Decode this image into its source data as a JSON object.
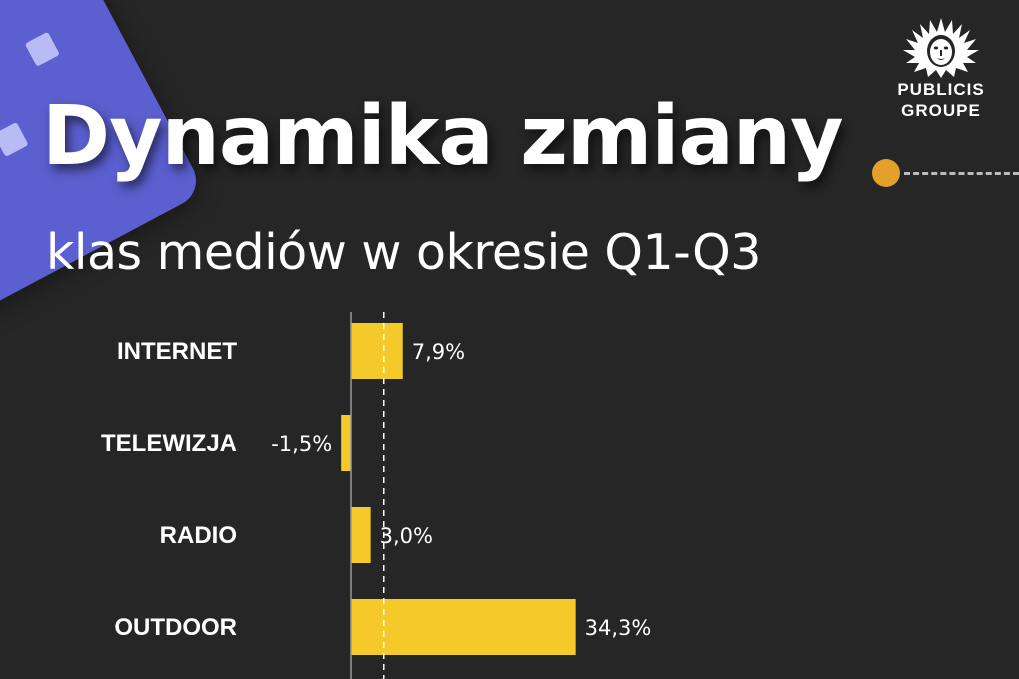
{
  "title": "Dynamika zmiany",
  "subtitle": "klas mediów w okresie Q1-Q3",
  "logo": {
    "line1": "PUBLICIS",
    "line2": "GROUPE",
    "icon": "lion-head-icon"
  },
  "colors": {
    "background": "#262626",
    "bar": "#f5c92a",
    "accent_dot": "#e3a02a",
    "tile": "#5b5fcf"
  },
  "chart_data": {
    "type": "bar",
    "orientation": "horizontal",
    "categories": [
      "INTERNET",
      "TELEWIZJA",
      "RADIO",
      "OUTDOOR"
    ],
    "values": [
      7.9,
      -1.5,
      3.0,
      34.3
    ],
    "value_labels": [
      "7,9%",
      "-1,5%",
      "3,0%",
      "34,3%"
    ],
    "reference_line": 5.0,
    "title": "",
    "xlabel": "",
    "ylabel": "",
    "grid": false,
    "legend": "none"
  }
}
